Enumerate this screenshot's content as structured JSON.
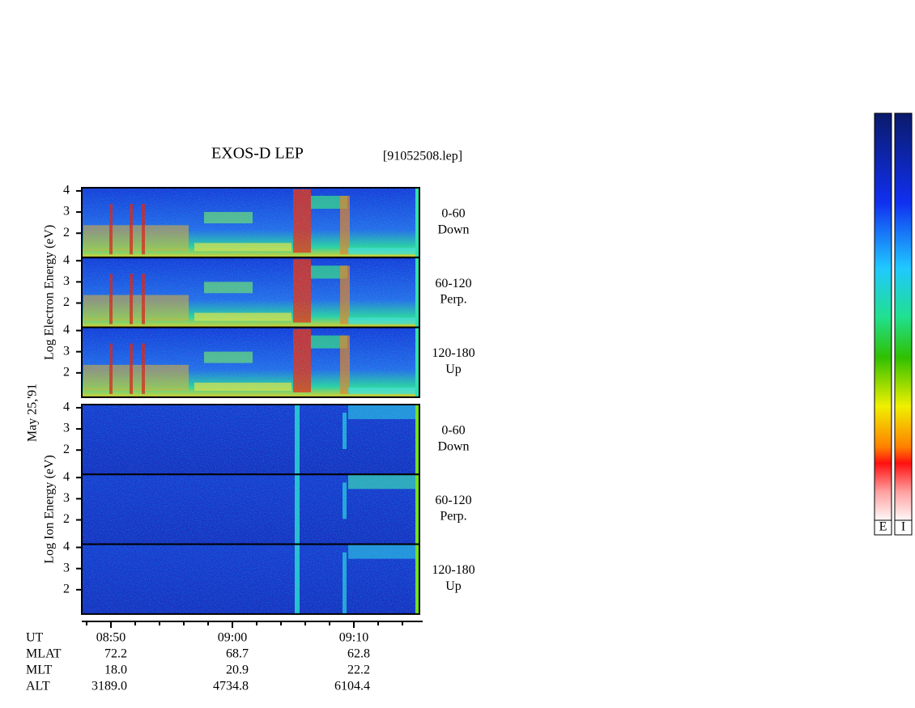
{
  "title": "EXOS-D LEP",
  "file": "[91052508.lep]",
  "date": "May 25,'91",
  "energy_axis": {
    "ylim": [
      0.85,
      4.15
    ],
    "yticks": [
      2,
      3,
      4
    ]
  },
  "time_axis": {
    "xlim": [
      47.6,
      75.4
    ],
    "xticks": [
      {
        "value": 50,
        "label": "08:50"
      },
      {
        "value": 60,
        "label": "09:00"
      },
      {
        "value": 70,
        "label": "09:10"
      }
    ]
  },
  "groups": [
    {
      "ylabel": "Log  Electron  Energy  (eV)",
      "panels": [
        {
          "range": "0-60",
          "dir": "Down"
        },
        {
          "range": "60-120",
          "dir": "Perp."
        },
        {
          "range": "120-180",
          "dir": "Up"
        }
      ]
    },
    {
      "ylabel": "Log  Ion  Energy  (eV)",
      "panels": [
        {
          "range": "0-60",
          "dir": "Down"
        },
        {
          "range": "60-120",
          "dir": "Perp."
        },
        {
          "range": "120-180",
          "dir": "Up"
        }
      ]
    }
  ],
  "ephemeris": [
    {
      "name": "UT",
      "values": []
    },
    {
      "name": "MLAT",
      "values": [
        "72.2",
        "68.7",
        "62.8"
      ]
    },
    {
      "name": "MLT",
      "values": [
        "18.0",
        "20.9",
        "22.2"
      ]
    },
    {
      "name": "ALT",
      "values": [
        "3189.0",
        "4734.8",
        "6104.4"
      ]
    }
  ],
  "colorbars": [
    "E",
    "I"
  ]
}
